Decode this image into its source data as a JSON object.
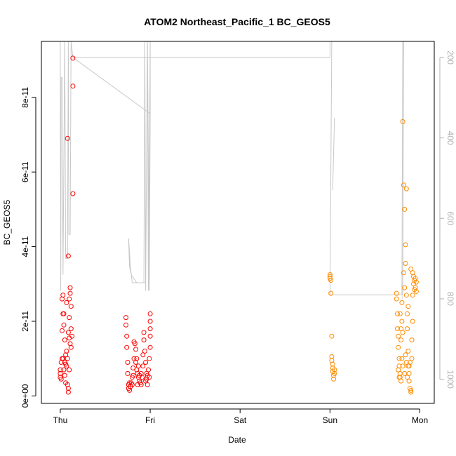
{
  "chart_data": {
    "type": "scatter",
    "title": "ATOM2 Northeast_Pacific_1 BC_GEOS5",
    "xlabel": "Date",
    "ylabel": "BC_GEOS5",
    "x_ticks": [
      {
        "label": "Thu",
        "day": 0
      },
      {
        "label": "Fri",
        "day": 1
      },
      {
        "label": "Sat",
        "day": 2
      },
      {
        "label": "Sun",
        "day": 3
      },
      {
        "label": "Mon",
        "day": 4
      }
    ],
    "xlim_days": [
      -0.21,
      4.16
    ],
    "ylim": [
      -2e-12,
      9.5e-11
    ],
    "y_ticks": [
      {
        "label": "0e+00",
        "value": 0
      },
      {
        "label": "2e-11",
        "value": 2e-11
      },
      {
        "label": "4e-11",
        "value": 4e-11
      },
      {
        "label": "6e-11",
        "value": 6e-11
      },
      {
        "label": "8e-11",
        "value": 8e-11
      }
    ],
    "right_axis": {
      "reversed": true,
      "ylim": [
        160,
        1060
      ],
      "ticks": [
        {
          "label": "200",
          "value": 200
        },
        {
          "label": "400",
          "value": 400
        },
        {
          "label": "600",
          "value": 600
        },
        {
          "label": "800",
          "value": 800
        },
        {
          "label": "1000",
          "value": 1000
        }
      ],
      "color": "#b3b3b3"
    },
    "pressure_line": {
      "color": "#c8c8c8",
      "points": [
        [
          0.0,
          100
        ],
        [
          0.005,
          780
        ],
        [
          0.01,
          250
        ],
        [
          0.02,
          250
        ],
        [
          0.03,
          740
        ],
        [
          0.05,
          100
        ],
        [
          0.06,
          700
        ],
        [
          0.08,
          700
        ],
        [
          0.09,
          100
        ],
        [
          0.095,
          640
        ],
        [
          0.11,
          640
        ],
        [
          0.12,
          100
        ],
        [
          0.14,
          200
        ],
        [
          1.0,
          340
        ],
        [
          1.0,
          100
        ],
        [
          0.98,
          780
        ],
        [
          0.97,
          100
        ],
        [
          0.95,
          760
        ],
        [
          0.93,
          760
        ],
        [
          0.92,
          760
        ],
        [
          0.9,
          760
        ],
        [
          0.8,
          760
        ],
        [
          0.78,
          720
        ],
        [
          0.76,
          650
        ],
        [
          0.77,
          720
        ],
        [
          0.79,
          740
        ],
        [
          0.85,
          760
        ],
        [
          0.93,
          760
        ],
        [
          0.94,
          100
        ],
        [
          0.95,
          780
        ],
        [
          0.97,
          100
        ],
        [
          0.99,
          780
        ],
        [
          1.0,
          340
        ]
      ],
      "flat_segments": [
        [
          [
            0.14,
            200
          ],
          [
            3.0,
            200
          ]
        ],
        [
          [
            3.0,
            200
          ],
          [
            3.0,
            100
          ]
        ],
        [
          [
            3.0,
            790
          ],
          [
            3.02,
            100
          ]
        ],
        [
          [
            3.03,
            530
          ],
          [
            3.05,
            350
          ]
        ],
        [
          [
            3.0,
            790
          ],
          [
            3.8,
            790
          ]
        ],
        [
          [
            3.8,
            790
          ],
          [
            3.81,
            100
          ]
        ],
        [
          [
            3.81,
            800
          ],
          [
            3.82,
            100
          ]
        ]
      ]
    },
    "series": [
      {
        "color": "#ff0000",
        "points": [
          [
            0.0,
            5e-12
          ],
          [
            0.0,
            6e-12
          ],
          [
            0.0,
            7e-12
          ],
          [
            0.01,
            4.5e-12
          ],
          [
            0.01,
            9e-12
          ],
          [
            0.02,
            1e-11
          ],
          [
            0.02,
            1.75e-11
          ],
          [
            0.02,
            2.6e-11
          ],
          [
            0.03,
            2.7e-11
          ],
          [
            0.03,
            2.2e-11
          ],
          [
            0.04,
            1.9e-11
          ],
          [
            0.04,
            7e-12
          ],
          [
            0.05,
            5.5e-12
          ],
          [
            0.05,
            1.5e-11
          ],
          [
            0.06,
            3.5e-12
          ],
          [
            0.06,
            8.5e-12
          ],
          [
            0.07,
            2.5e-11
          ],
          [
            0.07,
            1.2e-11
          ],
          [
            0.08,
            3e-12
          ],
          [
            0.08,
            1e-11
          ],
          [
            0.09,
            1e-12
          ],
          [
            0.09,
            2e-12
          ],
          [
            0.09,
            1.7e-11
          ],
          [
            0.1,
            1.55e-11
          ],
          [
            0.1,
            2.1e-11
          ],
          [
            0.1,
            2.6e-11
          ],
          [
            0.11,
            2.9e-11
          ],
          [
            0.11,
            2.75e-11
          ],
          [
            0.12,
            1.8e-11
          ],
          [
            0.12,
            2.4e-11
          ],
          [
            0.12,
            1.3e-11
          ],
          [
            0.13,
            1.6e-11
          ],
          [
            0.08,
            6.9e-11
          ],
          [
            0.09,
            3.75e-11
          ],
          [
            0.14,
            8.3e-11
          ],
          [
            0.14,
            9.05e-11
          ],
          [
            0.14,
            5.42e-11
          ],
          [
            0.03,
            1e-11
          ],
          [
            0.04,
            2.2e-11
          ],
          [
            0.06,
            1.1e-11
          ],
          [
            0.07,
            8e-12
          ],
          [
            0.1,
            7e-12
          ],
          [
            0.11,
            1.4e-11
          ],
          [
            0.05,
            9e-12
          ],
          [
            0.73,
            2.1e-11
          ],
          [
            0.73,
            1.9e-11
          ],
          [
            0.74,
            1.6e-11
          ],
          [
            0.74,
            1.3e-11
          ],
          [
            0.75,
            9e-12
          ],
          [
            0.75,
            6e-12
          ],
          [
            0.76,
            3e-12
          ],
          [
            0.76,
            2e-12
          ],
          [
            0.77,
            1.5e-12
          ],
          [
            0.78,
            2.5e-12
          ],
          [
            0.79,
            3.5e-12
          ],
          [
            0.8,
            3e-12
          ],
          [
            0.8,
            5e-12
          ],
          [
            0.81,
            7.5e-12
          ],
          [
            0.82,
            1e-11
          ],
          [
            0.82,
            1.45e-11
          ],
          [
            0.83,
            1.4e-11
          ],
          [
            0.84,
            1.25e-11
          ],
          [
            0.84,
            9e-12
          ],
          [
            0.85,
            7e-12
          ],
          [
            0.86,
            6e-12
          ],
          [
            0.87,
            5e-12
          ],
          [
            0.88,
            4e-12
          ],
          [
            0.89,
            3.5e-12
          ],
          [
            0.9,
            3e-12
          ],
          [
            0.91,
            5e-12
          ],
          [
            0.92,
            8e-12
          ],
          [
            0.92,
            1.1e-11
          ],
          [
            0.93,
            1.7e-11
          ],
          [
            0.93,
            1.5e-11
          ],
          [
            0.94,
            1.2e-11
          ],
          [
            0.95,
            9e-12
          ],
          [
            0.96,
            6e-12
          ],
          [
            0.96,
            4.5e-12
          ],
          [
            0.97,
            5.5e-12
          ],
          [
            0.98,
            7e-12
          ],
          [
            0.99,
            1e-11
          ],
          [
            1.0,
            1.3e-11
          ],
          [
            1.0,
            1.6e-11
          ],
          [
            1.0,
            2.2e-11
          ],
          [
            1.0,
            2e-11
          ],
          [
            1.0,
            1.8e-11
          ],
          [
            0.86,
            3e-12
          ],
          [
            0.88,
            5.5e-12
          ],
          [
            0.9,
            6e-12
          ],
          [
            0.81,
            5.5e-12
          ],
          [
            0.77,
            3.5e-12
          ],
          [
            0.95,
            4e-12
          ],
          [
            0.97,
            3e-12
          ],
          [
            0.99,
            5e-12
          ],
          [
            0.85,
            1e-11
          ],
          [
            0.87,
            8e-12
          ]
        ]
      },
      {
        "color": "#ff8c00",
        "points": [
          [
            3.0,
            3.15e-11
          ],
          [
            3.0,
            3.2e-11
          ],
          [
            3.0,
            3.25e-11
          ],
          [
            3.01,
            3.1e-11
          ],
          [
            3.01,
            2.75e-11
          ],
          [
            3.02,
            1.6e-11
          ],
          [
            3.02,
            1.05e-11
          ],
          [
            3.02,
            9.5e-12
          ],
          [
            3.03,
            8.5e-12
          ],
          [
            3.03,
            7.5e-12
          ],
          [
            3.03,
            6.5e-12
          ],
          [
            3.04,
            5.5e-12
          ],
          [
            3.04,
            4.5e-12
          ],
          [
            3.05,
            7e-12
          ],
          [
            3.05,
            6e-12
          ],
          [
            3.74,
            2.75e-11
          ],
          [
            3.74,
            2.6e-11
          ],
          [
            3.75,
            2.2e-11
          ],
          [
            3.75,
            1.8e-11
          ],
          [
            3.76,
            1.6e-11
          ],
          [
            3.76,
            1.3e-11
          ],
          [
            3.77,
            1e-11
          ],
          [
            3.77,
            8e-12
          ],
          [
            3.78,
            6e-12
          ],
          [
            3.78,
            5e-12
          ],
          [
            3.79,
            4e-12
          ],
          [
            3.79,
            1.5e-11
          ],
          [
            3.8,
            2.5e-11
          ],
          [
            3.8,
            2e-11
          ],
          [
            3.81,
            7.35e-11
          ],
          [
            3.81,
            1.7e-11
          ],
          [
            3.82,
            5.65e-11
          ],
          [
            3.82,
            3.3e-11
          ],
          [
            3.83,
            5e-11
          ],
          [
            3.83,
            2.9e-11
          ],
          [
            3.84,
            3.55e-11
          ],
          [
            3.84,
            4.05e-11
          ],
          [
            3.85,
            5.55e-11
          ],
          [
            3.85,
            2.7e-11
          ],
          [
            3.86,
            2.2e-11
          ],
          [
            3.86,
            1.8e-11
          ],
          [
            3.87,
            1.2e-11
          ],
          [
            3.87,
            8e-12
          ],
          [
            3.88,
            6e-12
          ],
          [
            3.88,
            4e-12
          ],
          [
            3.89,
            2e-12
          ],
          [
            3.9,
            1.5e-12
          ],
          [
            3.9,
            1e-12
          ],
          [
            3.91,
            1e-11
          ],
          [
            3.91,
            1.5e-11
          ],
          [
            3.92,
            2e-11
          ],
          [
            3.92,
            2.7e-11
          ],
          [
            3.93,
            3e-11
          ],
          [
            3.93,
            3.2e-11
          ],
          [
            3.94,
            3.1e-11
          ],
          [
            3.94,
            2.85e-11
          ],
          [
            3.95,
            2.9e-11
          ],
          [
            3.95,
            3.15e-11
          ],
          [
            3.96,
            3.05e-11
          ],
          [
            3.96,
            2.8e-11
          ],
          [
            3.78,
            2.2e-11
          ],
          [
            3.79,
            1.8e-11
          ],
          [
            3.8,
            1e-11
          ],
          [
            3.83,
            6e-12
          ],
          [
            3.85,
            9e-12
          ],
          [
            3.87,
            2.4e-11
          ],
          [
            3.89,
            9e-12
          ],
          [
            3.9,
            3.4e-11
          ],
          [
            3.92,
            3.3e-11
          ],
          [
            3.76,
            7e-12
          ],
          [
            3.77,
            5e-12
          ],
          [
            3.81,
            8e-12
          ],
          [
            3.84,
            1.1e-11
          ],
          [
            3.86,
            5e-12
          ],
          [
            3.88,
            8e-12
          ]
        ]
      }
    ]
  }
}
